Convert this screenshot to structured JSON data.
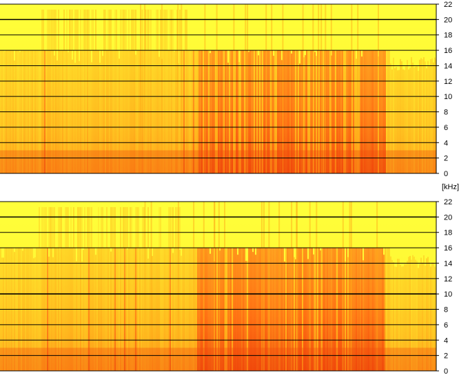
{
  "chart_data": [
    {
      "type": "heatmap",
      "title": "",
      "xlabel": "",
      "ylabel": "[kHz]",
      "ylim": [
        0,
        22
      ],
      "yticks": [
        0,
        2,
        4,
        6,
        8,
        10,
        12,
        14,
        16,
        18,
        20,
        22
      ],
      "ytick_labels": [
        "0",
        "2",
        "4",
        "6",
        "8",
        "10",
        "12",
        "14",
        "16",
        "18",
        "20",
        "22"
      ],
      "bandwidth_cutoff_khz": 16,
      "grid": true,
      "colormap": [
        "#ffff33",
        "#ffd21e",
        "#ffa214",
        "#ff7a0f",
        "#f0400a"
      ]
    },
    {
      "type": "heatmap",
      "title": "",
      "xlabel": "",
      "ylabel": "[kHz]",
      "ylim": [
        0,
        22
      ],
      "yticks": [
        0,
        2,
        4,
        6,
        8,
        10,
        12,
        14,
        16,
        18,
        20,
        22
      ],
      "ytick_labels": [
        "0",
        "2",
        "4",
        "6",
        "8",
        "10",
        "12",
        "14",
        "16",
        "18",
        "20",
        "22"
      ],
      "bandwidth_cutoff_khz": 16,
      "grid": true,
      "colormap": [
        "#ffff33",
        "#ffd21e",
        "#ffa214",
        "#ff7a0f",
        "#f0400a"
      ]
    }
  ],
  "unit_label": "[kHz]"
}
